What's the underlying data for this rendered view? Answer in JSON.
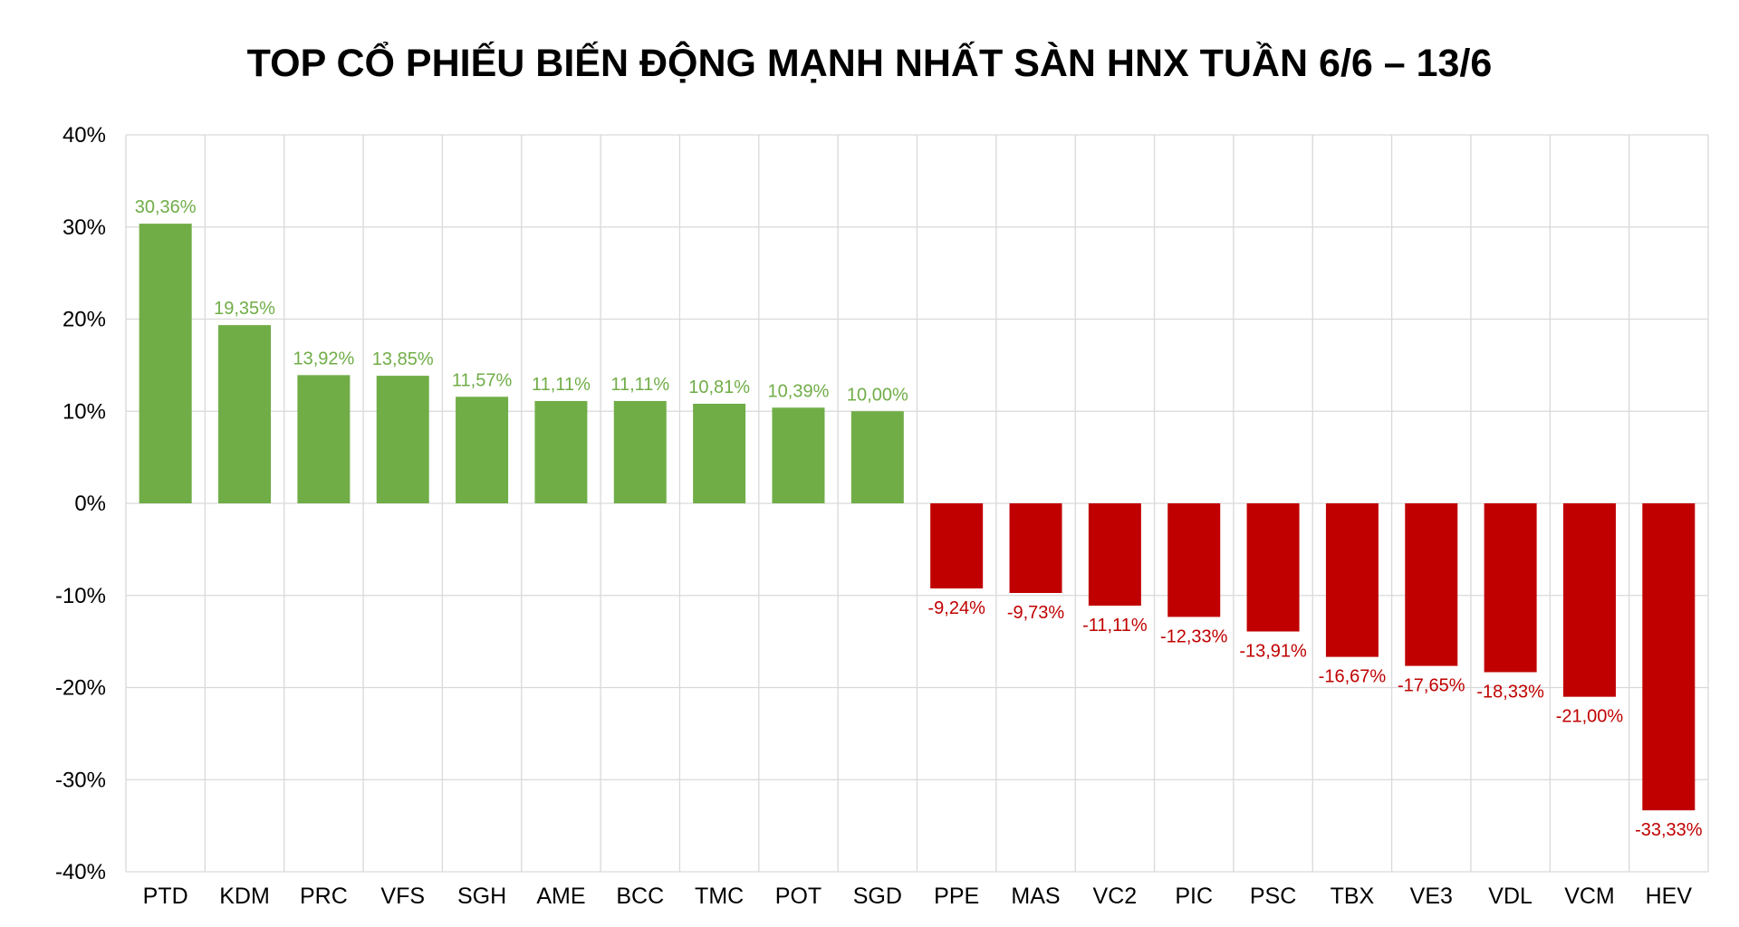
{
  "chart_data": {
    "type": "bar",
    "title": "TOP CỔ PHIẾU BIẾN ĐỘNG MẠNH NHẤT SÀN HNX TUẦN 6/6 – 13/6",
    "xlabel": "",
    "ylabel": "",
    "ylim": [
      -40,
      40
    ],
    "yticks": [
      40,
      30,
      20,
      10,
      0,
      -10,
      -20,
      -30,
      -40
    ],
    "ytick_labels": [
      "40%",
      "30%",
      "20%",
      "10%",
      "0%",
      "-10%",
      "-20%",
      "-30%",
      "-40%"
    ],
    "grid": true,
    "legend": "none",
    "categories": [
      "PTD",
      "KDM",
      "PRC",
      "VFS",
      "SGH",
      "AME",
      "BCC",
      "TMC",
      "POT",
      "SGD",
      "PPE",
      "MAS",
      "VC2",
      "PIC",
      "PSC",
      "TBX",
      "VE3",
      "VDL",
      "VCM",
      "HEV"
    ],
    "values": [
      30.36,
      19.35,
      13.92,
      13.85,
      11.57,
      11.11,
      11.11,
      10.81,
      10.39,
      10.0,
      -9.24,
      -9.73,
      -11.11,
      -12.33,
      -13.91,
      -16.67,
      -17.65,
      -18.33,
      -21.0,
      -33.33
    ],
    "data_labels": [
      "30,36%",
      "19,35%",
      "13,92%",
      "13,85%",
      "11,57%",
      "11,11%",
      "11,11%",
      "10,81%",
      "10,39%",
      "10,00%",
      "-9,24%",
      "-9,73%",
      "-11,11%",
      "-12,33%",
      "-13,91%",
      "-16,67%",
      "-17,65%",
      "-18,33%",
      "-21,00%",
      "-33,33%"
    ],
    "colors": {
      "positive": "#70AD47",
      "negative": "#C00000",
      "grid": "#D9D9D9"
    }
  }
}
